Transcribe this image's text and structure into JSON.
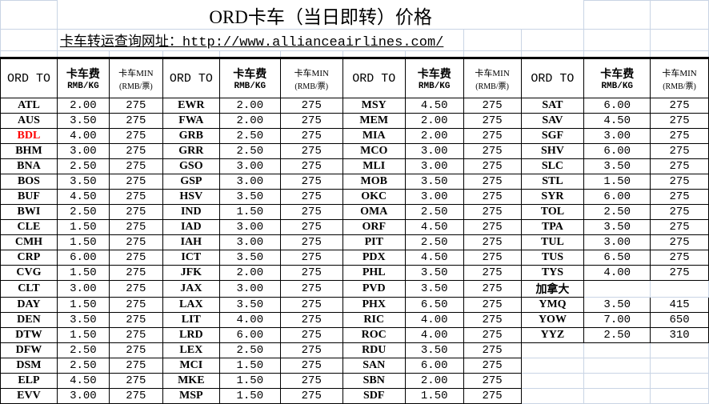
{
  "title": "ORD卡车（当日即转）价格",
  "url_label": "卡车转运查询网址：http://www.allianceairlines.com/",
  "header": {
    "dest": "ORD TO",
    "rate_line1": "卡车费",
    "rate_line2": "RMB/KG",
    "min_line1": "卡车MIN",
    "min_line2": "(RMB/票)"
  },
  "colors": {
    "highlight": "#ff0000",
    "grid": "#c9d4e4",
    "border": "#000000"
  },
  "blocks": [
    [
      {
        "code": "ATL",
        "rate": "2.00",
        "min": "275"
      },
      {
        "code": "AUS",
        "rate": "3.50",
        "min": "275"
      },
      {
        "code": "BDL",
        "rate": "4.00",
        "min": "275",
        "highlight": true
      },
      {
        "code": "BHM",
        "rate": "3.00",
        "min": "275"
      },
      {
        "code": "BNA",
        "rate": "2.50",
        "min": "275"
      },
      {
        "code": "BOS",
        "rate": "3.50",
        "min": "275"
      },
      {
        "code": "BUF",
        "rate": "4.50",
        "min": "275"
      },
      {
        "code": "BWI",
        "rate": "2.50",
        "min": "275"
      },
      {
        "code": "CLE",
        "rate": "1.50",
        "min": "275"
      },
      {
        "code": "CMH",
        "rate": "1.50",
        "min": "275"
      },
      {
        "code": "CRP",
        "rate": "6.00",
        "min": "275"
      },
      {
        "code": "CVG",
        "rate": "1.50",
        "min": "275"
      },
      {
        "code": "CLT",
        "rate": "3.00",
        "min": "275"
      },
      {
        "code": "DAY",
        "rate": "1.50",
        "min": "275"
      },
      {
        "code": "DEN",
        "rate": "3.50",
        "min": "275"
      },
      {
        "code": "DTW",
        "rate": "1.50",
        "min": "275"
      },
      {
        "code": "DFW",
        "rate": "2.50",
        "min": "275"
      },
      {
        "code": "DSM",
        "rate": "2.50",
        "min": "275"
      },
      {
        "code": "ELP",
        "rate": "4.50",
        "min": "275"
      },
      {
        "code": "EVV",
        "rate": "3.00",
        "min": "275"
      }
    ],
    [
      {
        "code": "EWR",
        "rate": "2.00",
        "min": "275"
      },
      {
        "code": "FWA",
        "rate": "2.00",
        "min": "275"
      },
      {
        "code": "GRB",
        "rate": "2.50",
        "min": "275"
      },
      {
        "code": "GRR",
        "rate": "2.50",
        "min": "275"
      },
      {
        "code": "GSO",
        "rate": "3.00",
        "min": "275"
      },
      {
        "code": "GSP",
        "rate": "3.00",
        "min": "275"
      },
      {
        "code": "HSV",
        "rate": "3.50",
        "min": "275"
      },
      {
        "code": "IND",
        "rate": "1.50",
        "min": "275"
      },
      {
        "code": "IAD",
        "rate": "3.00",
        "min": "275"
      },
      {
        "code": "IAH",
        "rate": "3.00",
        "min": "275"
      },
      {
        "code": "ICT",
        "rate": "3.50",
        "min": "275"
      },
      {
        "code": "JFK",
        "rate": "2.00",
        "min": "275"
      },
      {
        "code": "JAX",
        "rate": "3.00",
        "min": "275"
      },
      {
        "code": "LAX",
        "rate": "3.50",
        "min": "275"
      },
      {
        "code": "LIT",
        "rate": "4.00",
        "min": "275"
      },
      {
        "code": "LRD",
        "rate": "6.00",
        "min": "275"
      },
      {
        "code": "LEX",
        "rate": "2.50",
        "min": "275"
      },
      {
        "code": "MCI",
        "rate": "1.50",
        "min": "275"
      },
      {
        "code": "MKE",
        "rate": "1.50",
        "min": "275"
      },
      {
        "code": "MSP",
        "rate": "1.50",
        "min": "275"
      }
    ],
    [
      {
        "code": "MSY",
        "rate": "4.50",
        "min": "275"
      },
      {
        "code": "MEM",
        "rate": "2.00",
        "min": "275"
      },
      {
        "code": "MIA",
        "rate": "2.00",
        "min": "275"
      },
      {
        "code": "MCO",
        "rate": "3.00",
        "min": "275"
      },
      {
        "code": "MLI",
        "rate": "3.00",
        "min": "275"
      },
      {
        "code": "MOB",
        "rate": "3.50",
        "min": "275"
      },
      {
        "code": "OKC",
        "rate": "3.00",
        "min": "275"
      },
      {
        "code": "OMA",
        "rate": "2.50",
        "min": "275"
      },
      {
        "code": "ORF",
        "rate": "4.50",
        "min": "275"
      },
      {
        "code": "PIT",
        "rate": "2.50",
        "min": "275"
      },
      {
        "code": "PDX",
        "rate": "4.50",
        "min": "275"
      },
      {
        "code": "PHL",
        "rate": "3.50",
        "min": "275"
      },
      {
        "code": "PVD",
        "rate": "3.50",
        "min": "275"
      },
      {
        "code": "PHX",
        "rate": "6.50",
        "min": "275"
      },
      {
        "code": "RIC",
        "rate": "4.00",
        "min": "275"
      },
      {
        "code": "ROC",
        "rate": "4.00",
        "min": "275"
      },
      {
        "code": "RDU",
        "rate": "3.50",
        "min": "275"
      },
      {
        "code": "SAN",
        "rate": "6.00",
        "min": "275"
      },
      {
        "code": "SBN",
        "rate": "2.00",
        "min": "275"
      },
      {
        "code": "SDF",
        "rate": "1.50",
        "min": "275"
      }
    ],
    [
      {
        "code": "SAT",
        "rate": "6.00",
        "min": "275"
      },
      {
        "code": "SAV",
        "rate": "4.50",
        "min": "275"
      },
      {
        "code": "SGF",
        "rate": "3.00",
        "min": "275"
      },
      {
        "code": "SHV",
        "rate": "6.00",
        "min": "275"
      },
      {
        "code": "SLC",
        "rate": "3.50",
        "min": "275"
      },
      {
        "code": "STL",
        "rate": "1.50",
        "min": "275"
      },
      {
        "code": "SYR",
        "rate": "6.00",
        "min": "275"
      },
      {
        "code": "TOL",
        "rate": "2.50",
        "min": "275"
      },
      {
        "code": "TPA",
        "rate": "3.50",
        "min": "275"
      },
      {
        "code": "TUL",
        "rate": "3.00",
        "min": "275"
      },
      {
        "code": "TUS",
        "rate": "6.50",
        "min": "275"
      },
      {
        "code": "TYS",
        "rate": "4.00",
        "min": "275"
      },
      {
        "section": "加拿大"
      },
      {
        "code": "YMQ",
        "rate": "3.50",
        "min": "415"
      },
      {
        "code": "YOW",
        "rate": "7.00",
        "min": "650"
      },
      {
        "code": "YYZ",
        "rate": "2.50",
        "min": "310"
      }
    ]
  ]
}
